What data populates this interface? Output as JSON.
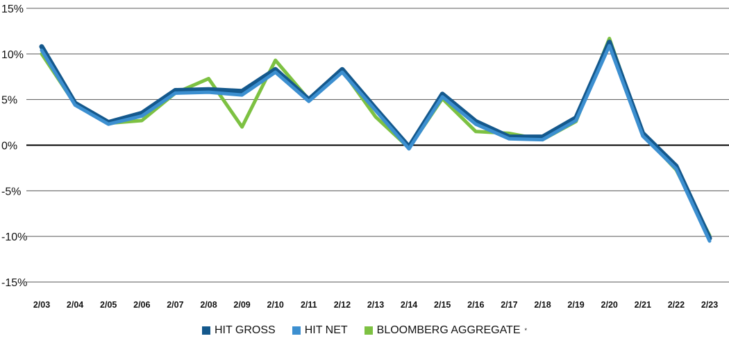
{
  "chart_data": {
    "type": "line",
    "categories": [
      "2/03",
      "2/04",
      "2/05",
      "2/06",
      "2/07",
      "2/08",
      "2/09",
      "2/10",
      "2/11",
      "2/12",
      "2/13",
      "2/14",
      "2/15",
      "2/16",
      "2/17",
      "2/18",
      "2/19",
      "2/20",
      "2/21",
      "2/22",
      "2/23"
    ],
    "ylim": [
      -15,
      15
    ],
    "yticks": [
      15,
      10,
      5,
      0,
      -5,
      -10,
      -15
    ],
    "ytick_labels": [
      "15%",
      "10%",
      "5%",
      "0%",
      "-5%",
      "-10%",
      "-15%"
    ],
    "grid": true,
    "legend_position": "bottom",
    "series": [
      {
        "name": "BLOOMBERG AGGREGATE",
        "marker": "*",
        "color": "#7dc142",
        "values": [
          10.0,
          4.5,
          2.4,
          2.7,
          5.7,
          7.3,
          2.0,
          9.3,
          5.0,
          8.2,
          3.1,
          -0.3,
          5.1,
          1.5,
          1.3,
          0.6,
          2.6,
          11.7,
          1.2,
          -2.7,
          -9.9
        ]
      },
      {
        "name": "HIT GROSS",
        "marker": "",
        "color": "#14588c",
        "values": [
          10.8,
          4.6,
          2.5,
          3.5,
          6.0,
          6.1,
          5.9,
          8.3,
          5.0,
          8.3,
          4.0,
          -0.2,
          5.6,
          2.6,
          0.9,
          0.9,
          3.0,
          11.3,
          1.3,
          -2.3,
          -10.2
        ]
      },
      {
        "name": "HIT NET",
        "marker": "",
        "color": "#3c8fd0",
        "values": [
          10.4,
          4.4,
          2.3,
          3.2,
          5.7,
          5.8,
          5.5,
          8.0,
          4.8,
          8.0,
          3.8,
          -0.4,
          5.3,
          2.3,
          0.7,
          0.6,
          2.7,
          10.9,
          1.0,
          -2.6,
          -10.5
        ]
      }
    ]
  },
  "legend": {
    "items": [
      {
        "label": "HIT GROSS",
        "color": "#14588c",
        "marker": ""
      },
      {
        "label": "HIT NET",
        "color": "#3c8fd0",
        "marker": ""
      },
      {
        "label": "BLOOMBERG AGGREGATE",
        "color": "#7dc142",
        "marker": "*"
      }
    ]
  }
}
